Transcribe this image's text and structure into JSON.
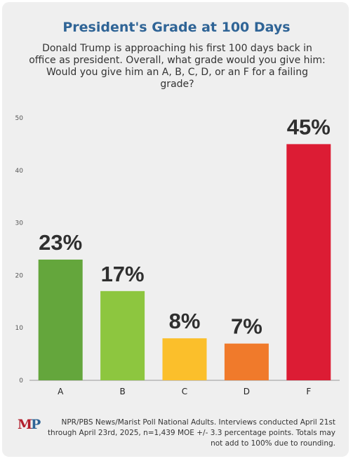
{
  "title": "President's Grade at 100 Days",
  "subtitle": "Donald Trump is approaching his first 100 days back in office as president. Overall, what grade would you give him: Would you give him an A, B, C, D, or an F for a failing grade?",
  "logo": {
    "m": "M",
    "p": "P"
  },
  "footnote": "NPR/PBS News/Marist Poll National Adults. Interviews conducted April 21st through April 23rd, 2025, n=1,439 MOE +/- 3.3 percentage points. Totals may not add to 100% due to rounding.",
  "chart_data": {
    "type": "bar",
    "categories": [
      "A",
      "B",
      "C",
      "D",
      "F"
    ],
    "values": [
      23,
      17,
      8,
      7,
      45
    ],
    "value_labels": [
      "23%",
      "17%",
      "8%",
      "7%",
      "45%"
    ],
    "colors": [
      "#64a63c",
      "#8dc63f",
      "#fbbf2b",
      "#f07a2b",
      "#dc1c34"
    ],
    "ylim": [
      0,
      50
    ],
    "yticks": [
      0,
      10,
      20,
      30,
      40,
      50
    ],
    "xlabel": "",
    "ylabel": "",
    "grid": false,
    "legend": "none"
  }
}
